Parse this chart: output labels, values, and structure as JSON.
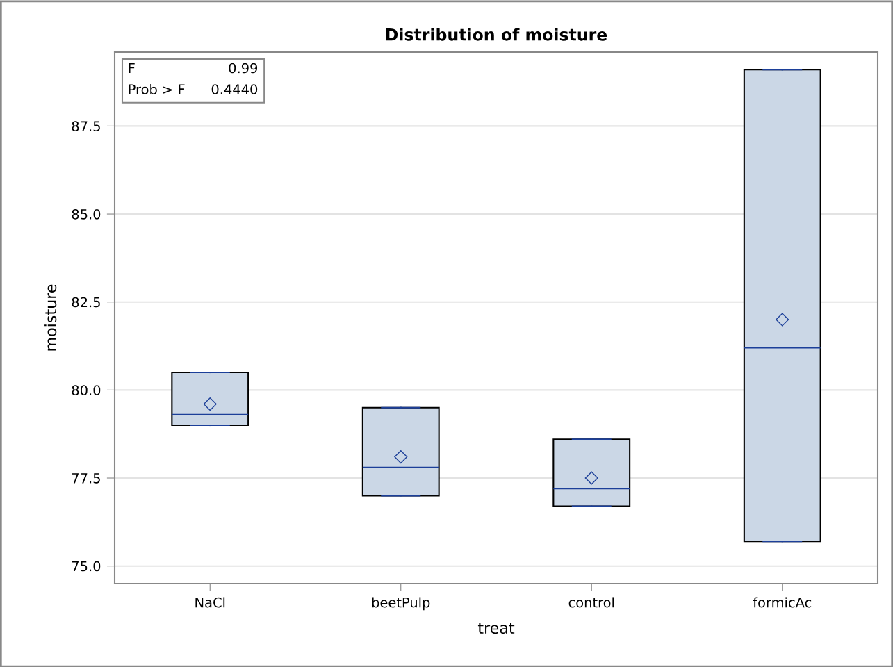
{
  "chart_data": {
    "type": "box",
    "title": "Distribution of moisture",
    "xlabel": "treat",
    "ylabel": "moisture",
    "categories": [
      "NaCl",
      "beetPulp",
      "control",
      "formicAc"
    ],
    "boxes": [
      {
        "low": 79.0,
        "q1": 79.0,
        "median": 79.3,
        "q3": 80.5,
        "high": 80.5,
        "mean": 79.6
      },
      {
        "low": 77.0,
        "q1": 77.0,
        "median": 77.8,
        "q3": 79.5,
        "high": 79.5,
        "mean": 78.1
      },
      {
        "low": 76.7,
        "q1": 76.7,
        "median": 77.2,
        "q3": 78.6,
        "high": 78.6,
        "mean": 77.5
      },
      {
        "low": 75.7,
        "q1": 75.7,
        "median": 81.2,
        "q3": 89.1,
        "high": 89.1,
        "mean": 82.0
      }
    ],
    "color": "#cbd7e6",
    "marker": "diamond",
    "ylim": [
      74.5,
      89.6
    ],
    "yticks": [
      {
        "value": 75,
        "label": "75.0"
      },
      {
        "value": 77.5,
        "label": "77.5"
      },
      {
        "value": 80,
        "label": "80.0"
      },
      {
        "value": 82.5,
        "label": "82.5"
      },
      {
        "value": 85,
        "label": "85.0"
      },
      {
        "value": 87.5,
        "label": "87.5"
      }
    ],
    "grid": "y",
    "annotations": [
      "F",
      "0.99",
      "Prob > F",
      "0.4440"
    ]
  }
}
